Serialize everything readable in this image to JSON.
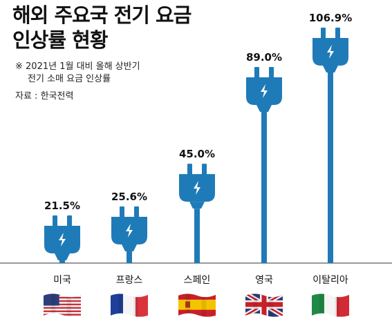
{
  "title_line1": "해외 주요국 전기 요금",
  "title_line2": "인상률 현황",
  "note_line1": "※ 2021년 1월 대비 올해 상반기",
  "note_line2": "전기 소매 요금 인상률",
  "source": "자료 : 한국전력",
  "colors": {
    "plug": "#1f7bb8",
    "cord": "#1f7bb8",
    "baseline": "#777777"
  },
  "chart_data": {
    "type": "bar",
    "categories": [
      "미국",
      "프랑스",
      "스페인",
      "영국",
      "이탈리아"
    ],
    "values": [
      21.5,
      25.6,
      45.0,
      89.0,
      106.9
    ],
    "value_labels": [
      "21.5%",
      "25.6%",
      "45.0%",
      "89.0%",
      "106.9%"
    ],
    "flags": [
      "us-flag",
      "france-flag",
      "spain-flag",
      "uk-flag",
      "italy-flag"
    ],
    "title": "",
    "xlabel": "",
    "ylabel": "",
    "ylim": [
      0,
      110
    ]
  }
}
